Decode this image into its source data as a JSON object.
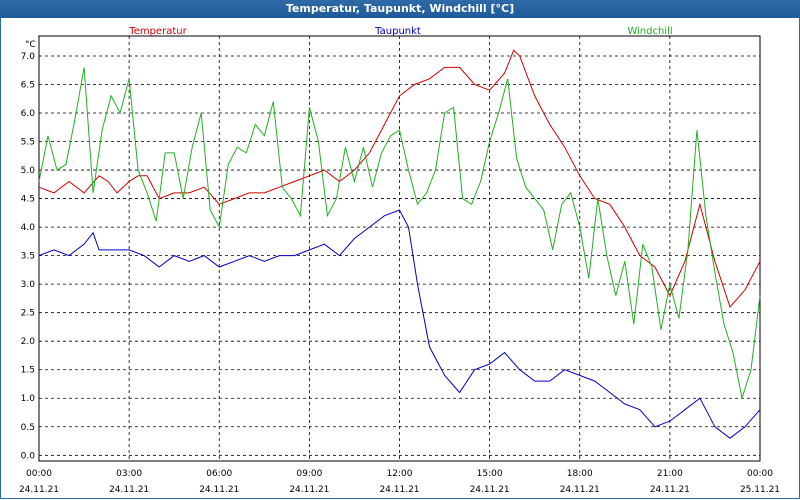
{
  "window": {
    "title": "Temperatur, Taupunkt, Windchill [°C]"
  },
  "chart_data": {
    "type": "line",
    "title": "Temperatur, Taupunkt, Windchill [°C]",
    "ylabel": "°C",
    "xlabel": "",
    "ylim": [
      -0.1,
      7.35
    ],
    "xlim": [
      0,
      24
    ],
    "grid": true,
    "legend_placement": "top",
    "colors": {
      "Temperatur": "#d00000",
      "Taupunkt": "#0000c0",
      "Windchill": "#22b022"
    },
    "y_ticks": [
      "0.0",
      "0.5",
      "1.0",
      "1.5",
      "2.0",
      "2.5",
      "3.0",
      "3.5",
      "4.0",
      "4.5",
      "5.0",
      "5.5",
      "6.0",
      "6.5",
      "7.0"
    ],
    "x_ticks": [
      {
        "time": "00:00",
        "date": "24.11.21"
      },
      {
        "time": "03:00",
        "date": "24.11.21"
      },
      {
        "time": "06:00",
        "date": "24.11.21"
      },
      {
        "time": "09:00",
        "date": "24.11.21"
      },
      {
        "time": "12:00",
        "date": "24.11.21"
      },
      {
        "time": "15:00",
        "date": "24.11.21"
      },
      {
        "time": "18:00",
        "date": "24.11.21"
      },
      {
        "time": "21:00",
        "date": "24.11.21"
      },
      {
        "time": "00:00",
        "date": "25.11.21"
      }
    ],
    "series": [
      {
        "name": "Temperatur",
        "x": [
          0,
          0.5,
          1,
          1.5,
          2,
          2.3,
          2.6,
          3,
          3.3,
          3.6,
          4,
          4.5,
          5,
          5.5,
          6,
          6.5,
          7,
          7.5,
          8,
          8.5,
          9,
          9.5,
          10,
          10.5,
          11,
          11.5,
          12,
          12.5,
          13,
          13.5,
          14,
          14.5,
          15,
          15.5,
          15.8,
          16,
          16.5,
          17,
          17.5,
          18,
          18.5,
          19,
          19.5,
          20,
          20.5,
          21,
          21.5,
          22,
          22.5,
          23,
          23.5,
          24
        ],
        "y": [
          4.7,
          4.6,
          4.8,
          4.6,
          4.9,
          4.8,
          4.6,
          4.8,
          4.9,
          4.9,
          4.5,
          4.6,
          4.6,
          4.7,
          4.4,
          4.5,
          4.6,
          4.6,
          4.7,
          4.8,
          4.9,
          5.0,
          4.8,
          5.0,
          5.3,
          5.8,
          6.3,
          6.5,
          6.6,
          6.8,
          6.8,
          6.5,
          6.4,
          6.7,
          7.1,
          7.0,
          6.3,
          5.8,
          5.4,
          4.9,
          4.5,
          4.4,
          4.0,
          3.5,
          3.3,
          2.8,
          3.4,
          4.4,
          3.4,
          2.6,
          2.9,
          3.4
        ]
      },
      {
        "name": "Taupunkt",
        "x": [
          0,
          0.5,
          1,
          1.5,
          1.8,
          2,
          2.5,
          3,
          3.5,
          4,
          4.5,
          5,
          5.5,
          6,
          6.5,
          7,
          7.5,
          8,
          8.5,
          9,
          9.5,
          10,
          10.5,
          11,
          11.5,
          12,
          12.3,
          12.6,
          13,
          13.5,
          14,
          14.5,
          15,
          15.5,
          16,
          16.5,
          17,
          17.5,
          18,
          18.5,
          19,
          19.5,
          20,
          20.5,
          21,
          21.5,
          22,
          22.5,
          23,
          23.5,
          24
        ],
        "y": [
          3.5,
          3.6,
          3.5,
          3.7,
          3.9,
          3.6,
          3.6,
          3.6,
          3.5,
          3.3,
          3.5,
          3.4,
          3.5,
          3.3,
          3.4,
          3.5,
          3.4,
          3.5,
          3.5,
          3.6,
          3.7,
          3.5,
          3.8,
          4.0,
          4.2,
          4.3,
          4.0,
          3.0,
          1.9,
          1.4,
          1.1,
          1.5,
          1.6,
          1.8,
          1.5,
          1.3,
          1.3,
          1.5,
          1.4,
          1.3,
          1.1,
          0.9,
          0.8,
          0.5,
          0.6,
          0.8,
          1.0,
          0.5,
          0.3,
          0.5,
          0.8
        ]
      },
      {
        "name": "Windchill",
        "x": [
          0,
          0.3,
          0.6,
          0.9,
          1.2,
          1.5,
          1.8,
          2.1,
          2.4,
          2.7,
          3.0,
          3.3,
          3.6,
          3.9,
          4.2,
          4.5,
          4.8,
          5.1,
          5.4,
          5.7,
          6.0,
          6.3,
          6.6,
          6.9,
          7.2,
          7.5,
          7.8,
          8.1,
          8.4,
          8.7,
          9.0,
          9.3,
          9.6,
          9.9,
          10.2,
          10.5,
          10.8,
          11.1,
          11.4,
          11.7,
          12.0,
          12.3,
          12.6,
          12.9,
          13.2,
          13.5,
          13.8,
          14.1,
          14.4,
          14.7,
          15.0,
          15.3,
          15.6,
          15.9,
          16.2,
          16.5,
          16.8,
          17.1,
          17.4,
          17.7,
          18.0,
          18.3,
          18.6,
          18.9,
          19.2,
          19.5,
          19.8,
          20.1,
          20.4,
          20.7,
          21.0,
          21.3,
          21.6,
          21.9,
          22.2,
          22.5,
          22.8,
          23.1,
          23.4,
          23.7,
          24.0
        ],
        "y": [
          4.8,
          5.6,
          5.0,
          5.1,
          5.9,
          6.8,
          4.6,
          5.7,
          6.3,
          6.0,
          6.6,
          5.0,
          4.6,
          4.1,
          5.3,
          5.3,
          4.5,
          5.4,
          6.0,
          4.3,
          4.0,
          5.1,
          5.4,
          5.3,
          5.8,
          5.6,
          6.2,
          4.7,
          4.5,
          4.2,
          6.1,
          5.5,
          4.2,
          4.5,
          5.4,
          4.8,
          5.4,
          4.7,
          5.3,
          5.6,
          5.7,
          5.0,
          4.4,
          4.6,
          5.0,
          6.0,
          6.1,
          4.5,
          4.4,
          4.8,
          5.5,
          6.0,
          6.6,
          5.2,
          4.7,
          4.5,
          4.3,
          3.6,
          4.4,
          4.6,
          4.0,
          3.1,
          4.5,
          3.5,
          2.8,
          3.4,
          2.3,
          3.7,
          3.3,
          2.2,
          3.0,
          2.4,
          3.6,
          5.7,
          4.2,
          3.2,
          2.3,
          1.8,
          1.0,
          1.5,
          2.8
        ]
      }
    ]
  }
}
